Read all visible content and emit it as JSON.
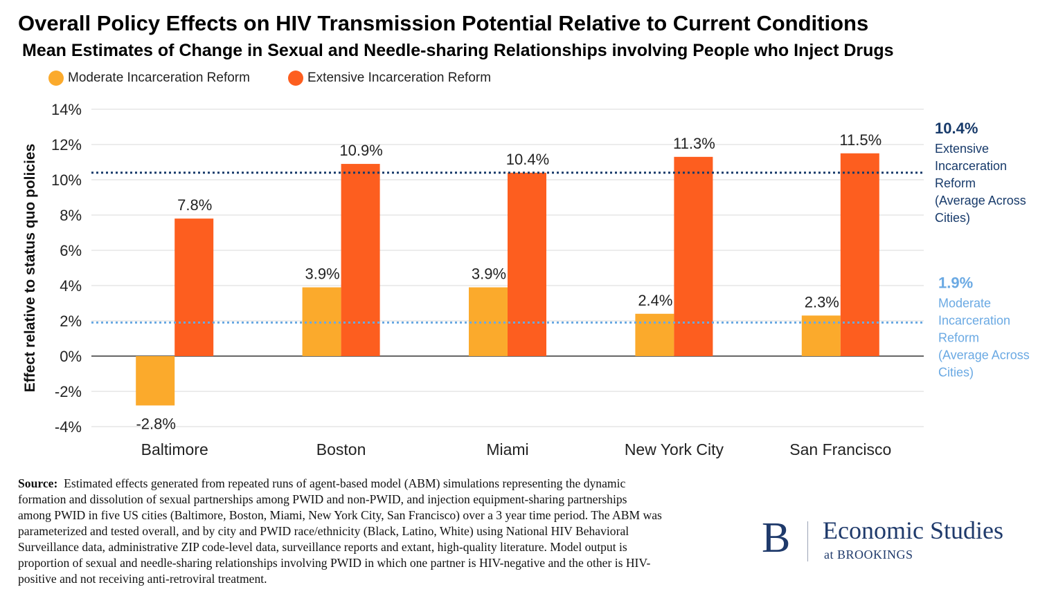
{
  "header": {
    "title": "Overall Policy Effects on HIV Transmission Potential Relative to Current Conditions",
    "subtitle": "Mean Estimates of Change in Sexual and Needle-sharing Relationships involving People who Inject Drugs"
  },
  "colors": {
    "moderate": "#fbaa2c",
    "extensive": "#fd5e1f",
    "extensive_avg_line": "#173a6a",
    "moderate_avg_line": "#6aa9e3",
    "grid": "#d9d9d9"
  },
  "chart_data": {
    "type": "bar",
    "title": "Overall Policy Effects on HIV Transmission Potential Relative to Current Conditions",
    "subtitle": "Mean Estimates of Change in Sexual and Needle-sharing Relationships involving People who Inject Drugs",
    "ylabel": "Effect relative to status quo policies",
    "xlabel": "",
    "categories": [
      "Baltimore",
      "Boston",
      "Miami",
      "New York City",
      "San Francisco"
    ],
    "series": [
      {
        "name": "Moderate Incarceration Reform",
        "values": [
          -2.8,
          3.9,
          3.9,
          2.4,
          2.3
        ],
        "labels": [
          "-2.8%",
          "3.9%",
          "3.9%",
          "2.4%",
          "2.3%"
        ]
      },
      {
        "name": "Extensive Incarceration Reform",
        "values": [
          7.8,
          10.9,
          10.4,
          11.3,
          11.5
        ],
        "labels": [
          "7.8%",
          "10.9%",
          "10.4%",
          "11.3%",
          "11.5%"
        ]
      }
    ],
    "ylim": [
      -4,
      14
    ],
    "yticks": [
      14,
      12,
      10,
      8,
      6,
      4,
      2,
      0,
      -2,
      -4
    ],
    "ytick_labels": [
      "14%",
      "12%",
      "10%",
      "8%",
      "6%",
      "4%",
      "2%",
      "0%",
      "-2%",
      "-4%"
    ],
    "grid": true,
    "legend_position": "top-left",
    "reference_lines": [
      {
        "series": "Extensive Incarceration Reform",
        "value": 10.4,
        "value_label": "10.4%",
        "label_lines": [
          "Extensive",
          "Incarceration",
          "Reform",
          "(Average Across",
          "Cities)"
        ]
      },
      {
        "series": "Moderate Incarceration Reform",
        "value": 1.9,
        "value_label": "1.9%",
        "label_lines": [
          "Moderate",
          "Incarceration",
          "Reform",
          "(Average Across",
          "Cities)"
        ]
      }
    ]
  },
  "source": {
    "label": "Source:",
    "text": "Estimated effects generated from repeated runs of agent-based model (ABM) simulations representing the dynamic formation and dissolution of sexual partnerships among PWID and non-PWID, and injection equipment-sharing partnerships among PWID in five US cities (Baltimore, Boston, Miami, New York City, San Francisco) over a 3 year time period. The ABM was parameterized and tested overall, and by city and PWID race/ethnicity (Black, Latino, White) using National HIV Behavioral Surveillance data, administrative ZIP code-level data, surveillance reports and extant, high-quality literature. Model output is proportion of sexual and needle-sharing relationships involving PWID in which one partner is HIV-negative and the other is HIV-positive and not receiving anti-retroviral treatment."
  },
  "branding": {
    "mark": "B",
    "name": "Economic Studies",
    "org": "at BROOKINGS"
  }
}
